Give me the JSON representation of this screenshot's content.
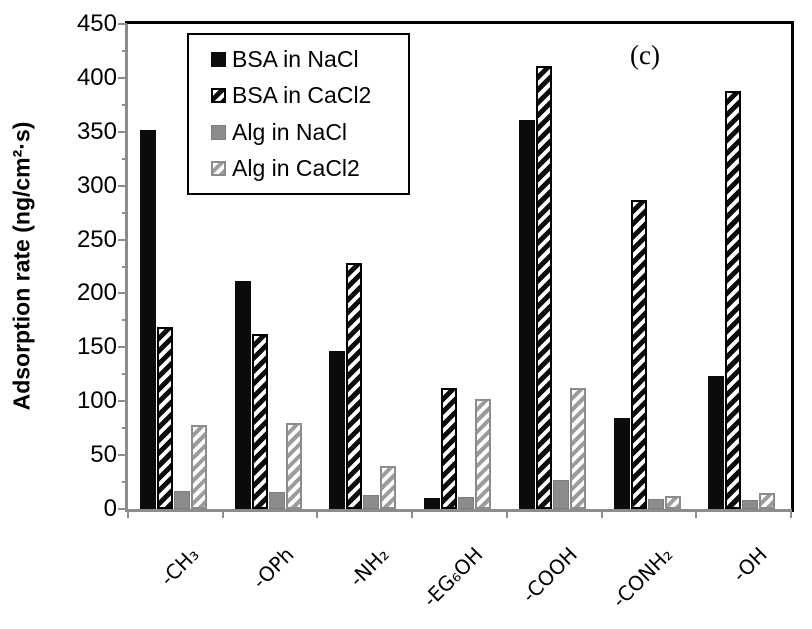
{
  "figure": {
    "annotation": "(c)",
    "background": "#ffffff",
    "frame_color_top_right": "#000000",
    "axis_color": "#8c8c8c"
  },
  "chart_data": {
    "type": "bar",
    "title": "",
    "xlabel": "",
    "ylabel": "Adsorption rate (ng/cm²·s)",
    "ylim": [
      0,
      450
    ],
    "y_major_step": 50,
    "y_minor_step": 25,
    "yticks": [
      0,
      50,
      100,
      150,
      200,
      250,
      300,
      350,
      400,
      450
    ],
    "grid": false,
    "legend_position": "top-left-inside",
    "categories": [
      "-CH₃",
      "-OPh",
      "-NH₂",
      "-EG₆OH",
      "-COOH",
      "-CONH₂",
      "-OH"
    ],
    "series": [
      {
        "name": "BSA in NaCl",
        "pattern": "solid-black",
        "color": "#0b0b0b",
        "values": [
          352,
          212,
          147,
          10,
          361,
          84,
          123
        ]
      },
      {
        "name": "BSA in CaCl2",
        "pattern": "hatch-black",
        "color": "#0b0b0b",
        "values": [
          169,
          162,
          228,
          112,
          411,
          287,
          388
        ]
      },
      {
        "name": "Alg in NaCl",
        "pattern": "solid-gray",
        "color": "#8c8c8c",
        "values": [
          17,
          16,
          13,
          11,
          27,
          9,
          8
        ]
      },
      {
        "name": "Alg in CaCl2",
        "pattern": "hatch-gray",
        "color": "#9c9c9c",
        "values": [
          78,
          80,
          40,
          102,
          112,
          12,
          15
        ]
      }
    ]
  }
}
